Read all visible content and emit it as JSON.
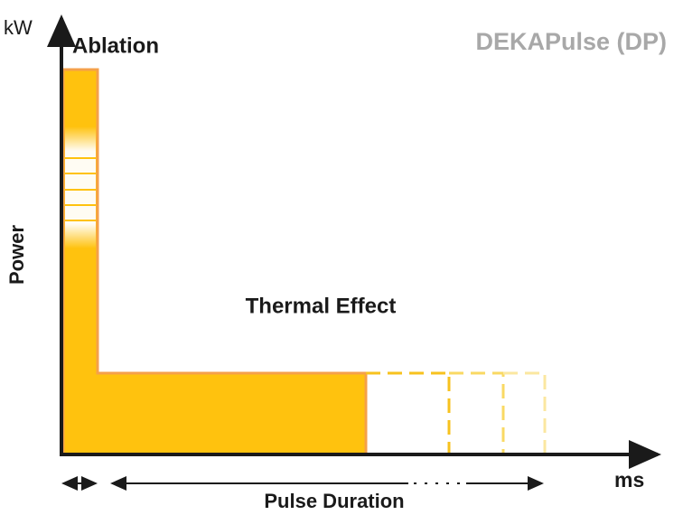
{
  "title": "DEKAPulse (DP)",
  "y_axis": {
    "unit": "kW",
    "label": "Power"
  },
  "x_axis": {
    "unit": "ms",
    "label": "Pulse Duration"
  },
  "regions": {
    "ablation": "Ablation",
    "thermal": "Thermal Effect"
  }
}
